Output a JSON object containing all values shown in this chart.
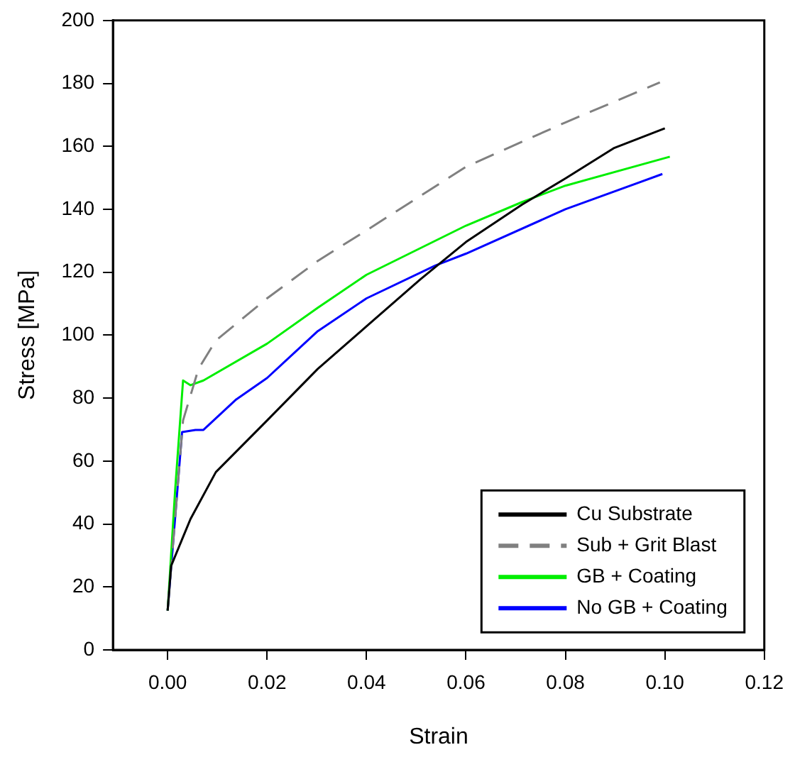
{
  "chart_data": {
    "type": "line",
    "xlabel": "Strain",
    "ylabel": "Stress [MPa]",
    "xlim": [
      -0.011,
      0.12
    ],
    "xticks": [
      {
        "value": 0,
        "label": "0.00"
      },
      {
        "value": 0.02,
        "label": "0.02"
      },
      {
        "value": 0.04,
        "label": "0.04"
      },
      {
        "value": 0.06,
        "label": "0.06"
      },
      {
        "value": 0.08,
        "label": "0.08"
      },
      {
        "value": 0.1,
        "label": "0.10"
      },
      {
        "value": 0.12,
        "label": "0.12"
      }
    ],
    "ylim": [
      0,
      200
    ],
    "yticks": [
      0,
      20,
      40,
      60,
      80,
      100,
      120,
      140,
      160,
      180,
      200
    ],
    "grid": false,
    "legend": "bottom right",
    "marker": "none",
    "series": [
      {
        "name": "Cu Substrate",
        "color": "#000000",
        "line_style": "solid",
        "x": [
          0,
          0.0007,
          0.0046,
          0.0097,
          0.02,
          0.0302,
          0.04,
          0.0508,
          0.06,
          0.0713,
          0.08,
          0.0897,
          0.1
        ],
        "values": [
          12.5,
          26.7,
          41.6,
          56.5,
          72.9,
          89.3,
          102.8,
          117.7,
          129.6,
          141.5,
          149.8,
          159.4,
          165.7
        ]
      },
      {
        "name": "Sub + Grit Blast",
        "color": "#808080",
        "line_style": "dashed",
        "x": [
          0,
          0.0031,
          0.0062,
          0.0097,
          0.02,
          0.0302,
          0.04,
          0.06,
          0.08,
          0.099
        ],
        "values": [
          12.5,
          72.9,
          89.3,
          98.3,
          111.7,
          123.6,
          133.3,
          153.5,
          167.6,
          180.3
        ]
      },
      {
        "name": "GB + Coating",
        "color": "#00ee00",
        "line_style": "solid",
        "x": [
          0,
          0.0015,
          0.0031,
          0.0046,
          0.0072,
          0.02,
          0.0302,
          0.04,
          0.06,
          0.0713,
          0.08,
          0.101
        ],
        "values": [
          12.5,
          50.6,
          85.6,
          84.1,
          85.6,
          97.3,
          108.7,
          119.2,
          134.8,
          142.3,
          147.5,
          156.7
        ]
      },
      {
        "name": "No GB + Coating",
        "color": "#0000ff",
        "line_style": "solid",
        "x": [
          0,
          0.0029,
          0.0056,
          0.0072,
          0.0138,
          0.02,
          0.0302,
          0.04,
          0.0538,
          0.06,
          0.08,
          0.0995
        ],
        "values": [
          12.5,
          69.2,
          69.9,
          69.9,
          79.6,
          86.4,
          101.3,
          111.7,
          122.1,
          125.9,
          140,
          151.2
        ]
      }
    ]
  }
}
